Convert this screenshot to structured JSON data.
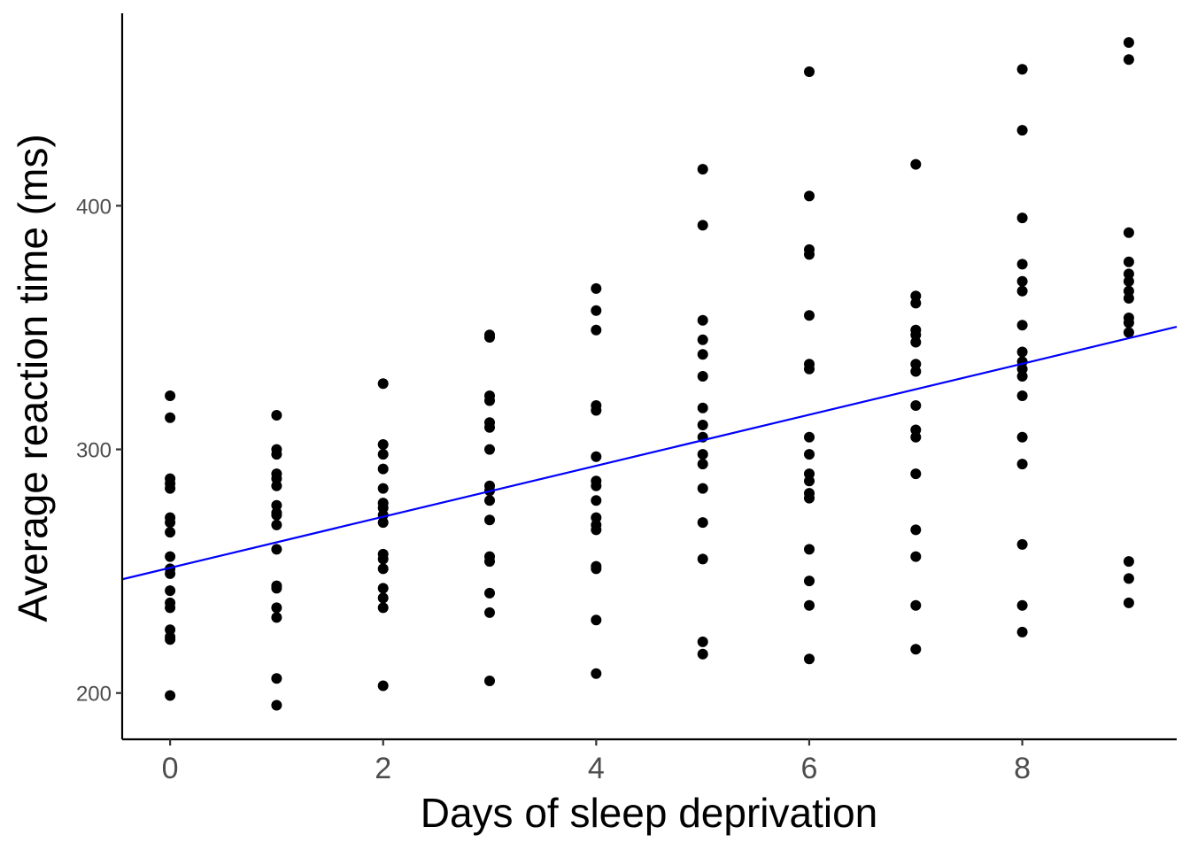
{
  "chart_data": {
    "type": "scatter",
    "title": "",
    "xlabel": "Days of sleep deprivation",
    "ylabel": "Average reaction time (ms)",
    "xlim": [
      -0.45,
      9.45
    ],
    "ylim": [
      181,
      479
    ],
    "x_ticks": [
      0,
      2,
      4,
      6,
      8
    ],
    "y_ticks": [
      200,
      300,
      400
    ],
    "grid": false,
    "legend": "none",
    "colors": {
      "points": "#000000",
      "fit_line": "#0000ff",
      "axis": "#000000",
      "tick_text": "#4d4d4d"
    },
    "points": [
      {
        "x": 0,
        "y": 322
      },
      {
        "x": 0,
        "y": 313
      },
      {
        "x": 0,
        "y": 288
      },
      {
        "x": 0,
        "y": 286
      },
      {
        "x": 0,
        "y": 284
      },
      {
        "x": 0,
        "y": 272
      },
      {
        "x": 0,
        "y": 270
      },
      {
        "x": 0,
        "y": 266
      },
      {
        "x": 0,
        "y": 256
      },
      {
        "x": 0,
        "y": 251
      },
      {
        "x": 0,
        "y": 249
      },
      {
        "x": 0,
        "y": 242
      },
      {
        "x": 0,
        "y": 237
      },
      {
        "x": 0,
        "y": 235
      },
      {
        "x": 0,
        "y": 226
      },
      {
        "x": 0,
        "y": 223
      },
      {
        "x": 0,
        "y": 222
      },
      {
        "x": 0,
        "y": 199
      },
      {
        "x": 1,
        "y": 314
      },
      {
        "x": 1,
        "y": 300
      },
      {
        "x": 1,
        "y": 298
      },
      {
        "x": 1,
        "y": 290
      },
      {
        "x": 1,
        "y": 288
      },
      {
        "x": 1,
        "y": 285
      },
      {
        "x": 1,
        "y": 277
      },
      {
        "x": 1,
        "y": 274
      },
      {
        "x": 1,
        "y": 273
      },
      {
        "x": 1,
        "y": 269
      },
      {
        "x": 1,
        "y": 259
      },
      {
        "x": 1,
        "y": 244
      },
      {
        "x": 1,
        "y": 243
      },
      {
        "x": 1,
        "y": 235
      },
      {
        "x": 1,
        "y": 231
      },
      {
        "x": 1,
        "y": 206
      },
      {
        "x": 1,
        "y": 195
      },
      {
        "x": 2,
        "y": 327
      },
      {
        "x": 2,
        "y": 302
      },
      {
        "x": 2,
        "y": 298
      },
      {
        "x": 2,
        "y": 292
      },
      {
        "x": 2,
        "y": 284
      },
      {
        "x": 2,
        "y": 278
      },
      {
        "x": 2,
        "y": 276
      },
      {
        "x": 2,
        "y": 273
      },
      {
        "x": 2,
        "y": 270
      },
      {
        "x": 2,
        "y": 257
      },
      {
        "x": 2,
        "y": 255
      },
      {
        "x": 2,
        "y": 251
      },
      {
        "x": 2,
        "y": 243
      },
      {
        "x": 2,
        "y": 239
      },
      {
        "x": 2,
        "y": 235
      },
      {
        "x": 2,
        "y": 203
      },
      {
        "x": 3,
        "y": 347
      },
      {
        "x": 3,
        "y": 346
      },
      {
        "x": 3,
        "y": 322
      },
      {
        "x": 3,
        "y": 320
      },
      {
        "x": 3,
        "y": 311
      },
      {
        "x": 3,
        "y": 309
      },
      {
        "x": 3,
        "y": 300
      },
      {
        "x": 3,
        "y": 285
      },
      {
        "x": 3,
        "y": 283
      },
      {
        "x": 3,
        "y": 279
      },
      {
        "x": 3,
        "y": 271
      },
      {
        "x": 3,
        "y": 256
      },
      {
        "x": 3,
        "y": 254
      },
      {
        "x": 3,
        "y": 241
      },
      {
        "x": 3,
        "y": 233
      },
      {
        "x": 3,
        "y": 205
      },
      {
        "x": 4,
        "y": 366
      },
      {
        "x": 4,
        "y": 357
      },
      {
        "x": 4,
        "y": 349
      },
      {
        "x": 4,
        "y": 318
      },
      {
        "x": 4,
        "y": 316
      },
      {
        "x": 4,
        "y": 297
      },
      {
        "x": 4,
        "y": 287
      },
      {
        "x": 4,
        "y": 285
      },
      {
        "x": 4,
        "y": 279
      },
      {
        "x": 4,
        "y": 272
      },
      {
        "x": 4,
        "y": 269
      },
      {
        "x": 4,
        "y": 267
      },
      {
        "x": 4,
        "y": 252
      },
      {
        "x": 4,
        "y": 251
      },
      {
        "x": 4,
        "y": 230
      },
      {
        "x": 4,
        "y": 208
      },
      {
        "x": 5,
        "y": 415
      },
      {
        "x": 5,
        "y": 392
      },
      {
        "x": 5,
        "y": 353
      },
      {
        "x": 5,
        "y": 345
      },
      {
        "x": 5,
        "y": 339
      },
      {
        "x": 5,
        "y": 330
      },
      {
        "x": 5,
        "y": 317
      },
      {
        "x": 5,
        "y": 310
      },
      {
        "x": 5,
        "y": 305
      },
      {
        "x": 5,
        "y": 298
      },
      {
        "x": 5,
        "y": 294
      },
      {
        "x": 5,
        "y": 284
      },
      {
        "x": 5,
        "y": 270
      },
      {
        "x": 5,
        "y": 255
      },
      {
        "x": 5,
        "y": 221
      },
      {
        "x": 5,
        "y": 216
      },
      {
        "x": 6,
        "y": 455
      },
      {
        "x": 6,
        "y": 404
      },
      {
        "x": 6,
        "y": 382
      },
      {
        "x": 6,
        "y": 380
      },
      {
        "x": 6,
        "y": 355
      },
      {
        "x": 6,
        "y": 335
      },
      {
        "x": 6,
        "y": 333
      },
      {
        "x": 6,
        "y": 305
      },
      {
        "x": 6,
        "y": 298
      },
      {
        "x": 6,
        "y": 290
      },
      {
        "x": 6,
        "y": 287
      },
      {
        "x": 6,
        "y": 282
      },
      {
        "x": 6,
        "y": 280
      },
      {
        "x": 6,
        "y": 259
      },
      {
        "x": 6,
        "y": 246
      },
      {
        "x": 6,
        "y": 236
      },
      {
        "x": 6,
        "y": 214
      },
      {
        "x": 7,
        "y": 417
      },
      {
        "x": 7,
        "y": 363
      },
      {
        "x": 7,
        "y": 360
      },
      {
        "x": 7,
        "y": 349
      },
      {
        "x": 7,
        "y": 347
      },
      {
        "x": 7,
        "y": 344
      },
      {
        "x": 7,
        "y": 335
      },
      {
        "x": 7,
        "y": 332
      },
      {
        "x": 7,
        "y": 318
      },
      {
        "x": 7,
        "y": 308
      },
      {
        "x": 7,
        "y": 305
      },
      {
        "x": 7,
        "y": 290
      },
      {
        "x": 7,
        "y": 267
      },
      {
        "x": 7,
        "y": 256
      },
      {
        "x": 7,
        "y": 236
      },
      {
        "x": 7,
        "y": 218
      },
      {
        "x": 8,
        "y": 456
      },
      {
        "x": 8,
        "y": 431
      },
      {
        "x": 8,
        "y": 395
      },
      {
        "x": 8,
        "y": 376
      },
      {
        "x": 8,
        "y": 369
      },
      {
        "x": 8,
        "y": 365
      },
      {
        "x": 8,
        "y": 351
      },
      {
        "x": 8,
        "y": 340
      },
      {
        "x": 8,
        "y": 336
      },
      {
        "x": 8,
        "y": 333
      },
      {
        "x": 8,
        "y": 330
      },
      {
        "x": 8,
        "y": 322
      },
      {
        "x": 8,
        "y": 305
      },
      {
        "x": 8,
        "y": 294
      },
      {
        "x": 8,
        "y": 261
      },
      {
        "x": 8,
        "y": 236
      },
      {
        "x": 8,
        "y": 225
      },
      {
        "x": 9,
        "y": 467
      },
      {
        "x": 9,
        "y": 460
      },
      {
        "x": 9,
        "y": 389
      },
      {
        "x": 9,
        "y": 377
      },
      {
        "x": 9,
        "y": 372
      },
      {
        "x": 9,
        "y": 369
      },
      {
        "x": 9,
        "y": 365
      },
      {
        "x": 9,
        "y": 362
      },
      {
        "x": 9,
        "y": 354
      },
      {
        "x": 9,
        "y": 352
      },
      {
        "x": 9,
        "y": 348
      },
      {
        "x": 9,
        "y": 254
      },
      {
        "x": 9,
        "y": 247
      },
      {
        "x": 9,
        "y": 237
      }
    ],
    "fit_line": {
      "type": "linear",
      "intercept": 251.4,
      "slope": 10.47
    }
  }
}
